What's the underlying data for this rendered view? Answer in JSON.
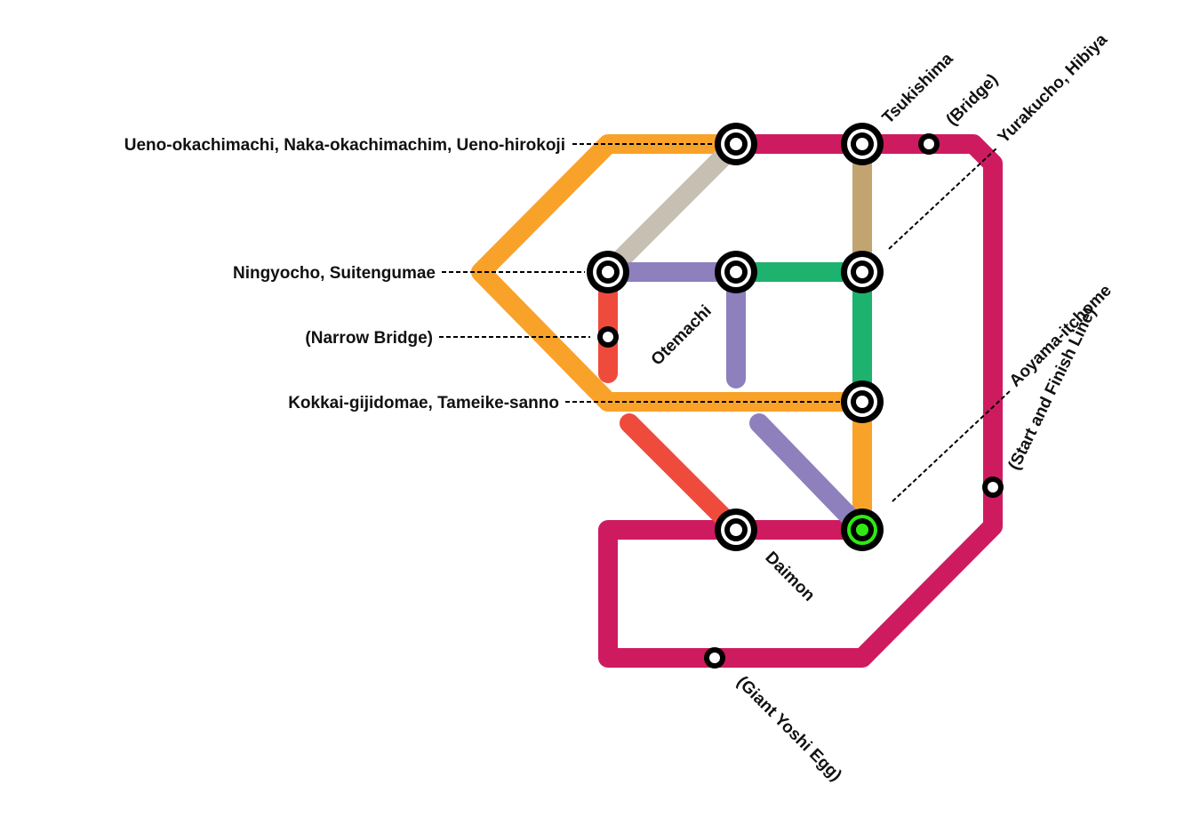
{
  "lines": {
    "orange": {
      "color": "#F9A22A"
    },
    "magenta": {
      "color": "#CE1B60"
    },
    "grey": {
      "color": "#C6BFB2"
    },
    "purple": {
      "color": "#8D80BC"
    },
    "green": {
      "color": "#1DB26D"
    },
    "red": {
      "color": "#EE4B3D"
    },
    "tan": {
      "color": "#C2A471"
    }
  },
  "station_colors": {
    "ring": "#000000",
    "fill": "#ffffff",
    "start_fill": "#2EEA12"
  },
  "stations": {
    "ueno": {
      "label": "Ueno-okachimachi, Naka-okachimachim, Ueno-hirokoji"
    },
    "tsukishima": {
      "label": "Tsukishima"
    },
    "bridge": {
      "label": "(Bridge)"
    },
    "yurakucho": {
      "label": "Yurakucho, Hibiya"
    },
    "ningyocho": {
      "label": "Ningyocho, Suitengumae"
    },
    "otemachi": {
      "label": "Otemachi"
    },
    "narrow_bridge": {
      "label": "(Narrow Bridge)"
    },
    "kokkai": {
      "label": "Kokkai-gijidomae, Tameike-sanno"
    },
    "aoyama": {
      "label": "Aoyama-itchome"
    },
    "start_finish": {
      "label": "(Start and Finish Line)"
    },
    "daimon": {
      "label": "Daimon"
    },
    "giant_yoshi_egg": {
      "label": "(Giant Yoshi Egg)"
    }
  }
}
